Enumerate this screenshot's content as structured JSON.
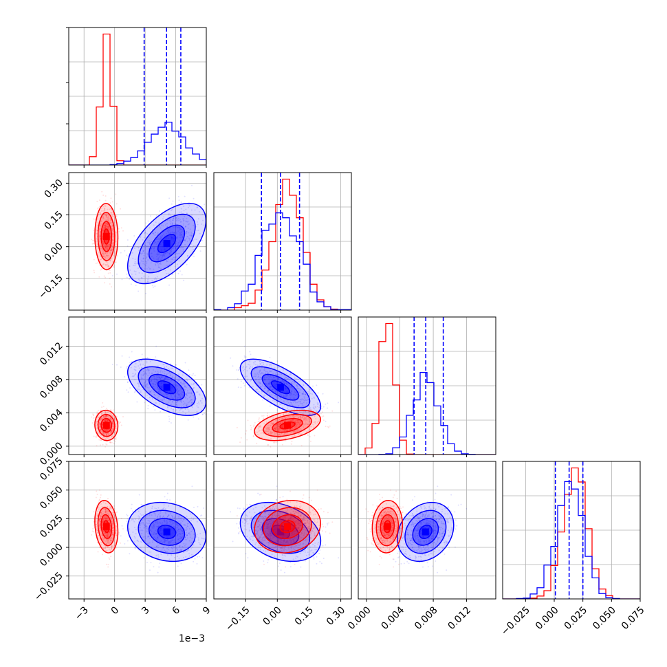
{
  "chart_data": {
    "type": "corner",
    "colors": {
      "blue": "#0000ff",
      "red": "#ff0000",
      "grid": "#b0b0b0"
    },
    "series": [
      {
        "color": "blue",
        "mean": [
          0.0052,
          0.02,
          0.007,
          0.013
        ],
        "sd": [
          0.0018,
          0.085,
          0.0014,
          0.012
        ],
        "quantiles_shown": true
      },
      {
        "color": "red",
        "mean": [
          -0.0008,
          0.05,
          0.0025,
          0.018
        ],
        "sd": [
          0.0005,
          0.07,
          0.0008,
          0.01
        ]
      }
    ],
    "parameters": [
      {
        "range": [
          -0.0045,
          0.009
        ],
        "ticks": [
          -3,
          0,
          3,
          6,
          9
        ],
        "tick_labels": [
          "−3",
          "0",
          "3",
          "6",
          "9"
        ],
        "scale": 0.001,
        "offset_label": "1e−3"
      },
      {
        "range": [
          -0.3,
          0.35
        ],
        "ticks": [
          -0.15,
          0.0,
          0.15,
          0.3
        ],
        "tick_labels": [
          "−0.15",
          "0.00",
          "0.15",
          "0.30"
        ]
      },
      {
        "range": [
          -0.001,
          0.0155
        ],
        "ticks": [
          0.0,
          0.004,
          0.008,
          0.012
        ],
        "tick_labels": [
          "0.000",
          "0.004",
          "0.008",
          "0.012"
        ]
      },
      {
        "range": [
          -0.045,
          0.075
        ],
        "ticks": [
          -0.025,
          0.0,
          0.025,
          0.05,
          0.075
        ],
        "tick_labels": [
          "−0.025",
          "0.000",
          "0.025",
          "0.050",
          "0.075"
        ]
      }
    ],
    "diagonal_quantiles_blue": [
      [
        0.0029,
        0.0051,
        0.0065
      ],
      [
        -0.075,
        0.015,
        0.105
      ],
      [
        0.0057,
        0.0071,
        0.0092
      ],
      [
        0.001,
        0.013,
        0.025
      ]
    ],
    "pair_correlations": {
      "blue": {
        "1-0": 0.55,
        "2-0": -0.25,
        "2-1": -0.6,
        "3-0": 0.0,
        "3-1": -0.3,
        "3-2": 0.0
      },
      "red": {
        "1-0": 0.0,
        "2-0": 0.0,
        "2-1": 0.35,
        "3-0": -0.2,
        "3-1": 0.1,
        "3-2": 0.0
      }
    },
    "grid": true
  }
}
